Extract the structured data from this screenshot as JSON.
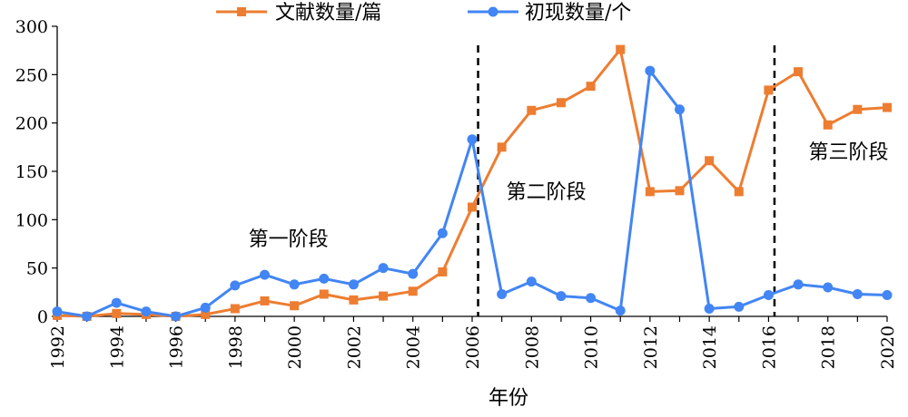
{
  "chart_data": {
    "type": "line",
    "xlabel": "年份",
    "ylabel": "",
    "ylim": [
      0,
      300
    ],
    "yticks": [
      0,
      50,
      100,
      150,
      200,
      250,
      300
    ],
    "xlim": [
      1992,
      2020
    ],
    "xticks": [
      1992,
      1994,
      1996,
      1998,
      2000,
      2002,
      2004,
      2006,
      2008,
      2010,
      2012,
      2014,
      2016,
      2018,
      2020
    ],
    "grid": false,
    "legend_position": "top",
    "x": [
      1992,
      1993,
      1994,
      1995,
      1996,
      1997,
      1998,
      1999,
      2000,
      2001,
      2002,
      2003,
      2004,
      2005,
      2006,
      2007,
      2008,
      2009,
      2010,
      2011,
      2012,
      2013,
      2014,
      2015,
      2016,
      2017,
      2018,
      2019,
      2020
    ],
    "series": [
      {
        "name": "文献数量/篇",
        "color": "#ED7D31",
        "marker": "square",
        "values": [
          1,
          0,
          3,
          2,
          0,
          2,
          8,
          16,
          11,
          23,
          17,
          21,
          26,
          46,
          113,
          175,
          213,
          221,
          238,
          276,
          129,
          130,
          161,
          129,
          234,
          253,
          198,
          214,
          216
        ]
      },
      {
        "name": "初现数量/个",
        "color": "#4285F4",
        "marker": "circle",
        "values": [
          5,
          0,
          14,
          5,
          0,
          9,
          32,
          43,
          33,
          39,
          33,
          50,
          44,
          86,
          183,
          23,
          36,
          21,
          19,
          6,
          254,
          214,
          8,
          10,
          22,
          33,
          30,
          23,
          22
        ]
      }
    ],
    "dividers": [
      2006.2,
      2016.2
    ],
    "annotations": [
      {
        "text": "第一阶段",
        "x": 1999.8,
        "y": 73
      },
      {
        "text": "第二阶段",
        "x": 2008.5,
        "y": 122
      },
      {
        "text": "第三阶段",
        "x": 2018.7,
        "y": 163
      }
    ]
  }
}
